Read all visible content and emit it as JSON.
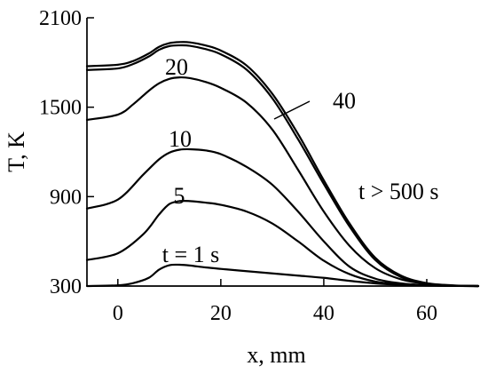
{
  "chart_data": {
    "type": "line",
    "xlabel": "x, mm",
    "ylabel": "T, K",
    "xlim": [
      -6,
      70
    ],
    "ylim": [
      300,
      2100
    ],
    "x_ticks": [
      0,
      20,
      40,
      60
    ],
    "y_ticks": [
      300,
      900,
      1500,
      2100
    ],
    "series": [
      {
        "name": "t = 1 s",
        "x": [
          -6,
          0,
          3,
          6,
          8,
          10,
          12,
          14,
          17,
          20,
          25,
          30,
          35,
          40,
          45,
          50,
          55,
          60,
          65,
          70
        ],
        "y": [
          300,
          305,
          320,
          355,
          410,
          440,
          443,
          438,
          425,
          415,
          400,
          385,
          370,
          355,
          335,
          318,
          308,
          303,
          301,
          300
        ]
      },
      {
        "name": "5",
        "x": [
          -6,
          0,
          5,
          8,
          10,
          12,
          14,
          17,
          20,
          25,
          30,
          35,
          40,
          45,
          50,
          55,
          60,
          65,
          70
        ],
        "y": [
          475,
          520,
          650,
          780,
          850,
          870,
          870,
          860,
          845,
          800,
          720,
          600,
          470,
          380,
          330,
          312,
          305,
          301,
          300
        ]
      },
      {
        "name": "10",
        "x": [
          -6,
          0,
          5,
          8,
          10,
          12,
          14,
          17,
          20,
          25,
          30,
          35,
          40,
          45,
          50,
          55,
          60,
          65,
          70
        ],
        "y": [
          820,
          880,
          1050,
          1150,
          1195,
          1215,
          1218,
          1210,
          1185,
          1100,
          980,
          800,
          600,
          430,
          350,
          318,
          306,
          301,
          300
        ]
      },
      {
        "name": "20",
        "x": [
          -6,
          0,
          3,
          6,
          8,
          10,
          12,
          14,
          17,
          20,
          25,
          30,
          35,
          40,
          45,
          50,
          55,
          60,
          65,
          70
        ],
        "y": [
          1415,
          1450,
          1520,
          1610,
          1660,
          1690,
          1700,
          1695,
          1670,
          1630,
          1530,
          1350,
          1080,
          800,
          570,
          420,
          345,
          315,
          303,
          300
        ]
      },
      {
        "name": "40",
        "x": [
          -6,
          0,
          3,
          6,
          8,
          10,
          12,
          14,
          17,
          20,
          25,
          30,
          35,
          40,
          45,
          50,
          55,
          60,
          65,
          70
        ],
        "y": [
          1775,
          1785,
          1810,
          1860,
          1905,
          1930,
          1937,
          1935,
          1915,
          1880,
          1780,
          1590,
          1320,
          1010,
          720,
          490,
          370,
          320,
          305,
          300
        ]
      },
      {
        "name": "t > 500 s",
        "x": [
          -6,
          0,
          3,
          6,
          8,
          10,
          12,
          14,
          17,
          20,
          25,
          30,
          35,
          40,
          45,
          50,
          55,
          60,
          65,
          70
        ],
        "y": [
          1750,
          1760,
          1790,
          1840,
          1885,
          1910,
          1915,
          1912,
          1890,
          1855,
          1752,
          1560,
          1285,
          985,
          700,
          475,
          360,
          317,
          304,
          300
        ]
      }
    ]
  },
  "annotations": {
    "t1": "t = 1 s",
    "t5": "5",
    "t10": "10",
    "t20": "20",
    "t40": "40",
    "t500": "t > 500 s"
  }
}
